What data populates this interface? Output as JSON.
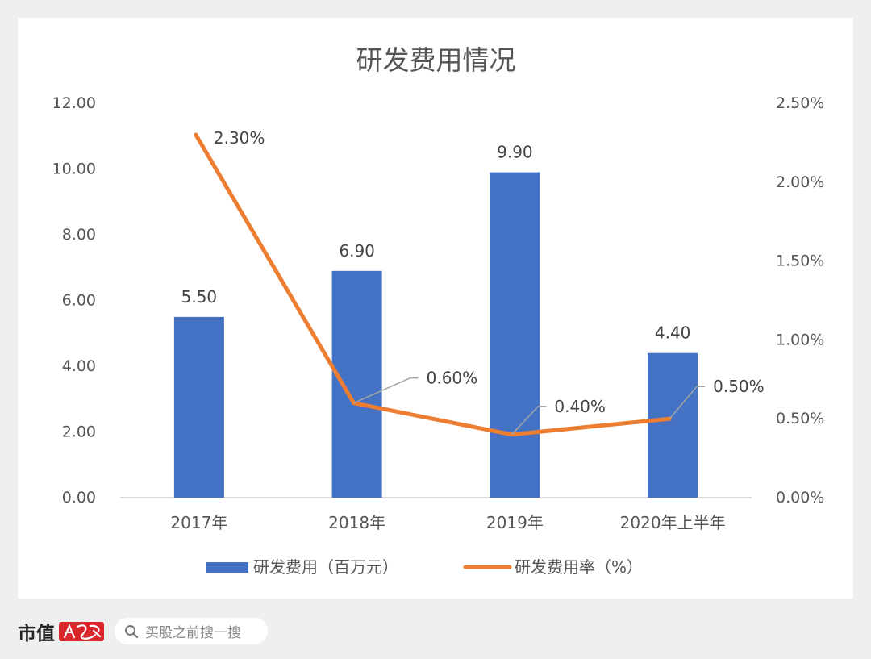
{
  "chart_data": {
    "type": "bar",
    "title": "研发费用情况",
    "categories": [
      "2017年",
      "2018年",
      "2019年",
      "2020年上半年"
    ],
    "series": [
      {
        "name": "研发费用（百万元）",
        "type": "bar",
        "axis": "left",
        "values": [
          5.5,
          6.9,
          9.9,
          4.4
        ],
        "labels": [
          "5.50",
          "6.90",
          "9.90",
          "4.40"
        ],
        "color": "#4472C4"
      },
      {
        "name": "研发费用率（%）",
        "type": "line",
        "axis": "right",
        "values": [
          2.3,
          0.6,
          0.4,
          0.5
        ],
        "labels": [
          "2.30%",
          "0.60%",
          "0.40%",
          "0.50%"
        ],
        "color": "#ED7D31"
      }
    ],
    "y_left": {
      "lim": [
        0,
        12
      ],
      "ticks": [
        0,
        2,
        4,
        6,
        8,
        10,
        12
      ],
      "tick_labels": [
        "0.00",
        "2.00",
        "4.00",
        "6.00",
        "8.00",
        "10.00",
        "12.00"
      ]
    },
    "y_right": {
      "lim": [
        0,
        2.5
      ],
      "ticks": [
        0,
        0.5,
        1.0,
        1.5,
        2.0,
        2.5
      ],
      "tick_labels": [
        "0.00%",
        "0.50%",
        "1.00%",
        "1.50%",
        "2.00%",
        "2.50%"
      ]
    },
    "grid": false,
    "legend_position": "bottom"
  },
  "footer": {
    "brand": "市值",
    "brand_seal_icon": "feng-seal-logo",
    "search_icon": "search-icon",
    "search_text": "买股之前搜一搜"
  },
  "colors": {
    "background": "#efefef",
    "card": "#ffffff",
    "seal_red": "#d8262a"
  }
}
